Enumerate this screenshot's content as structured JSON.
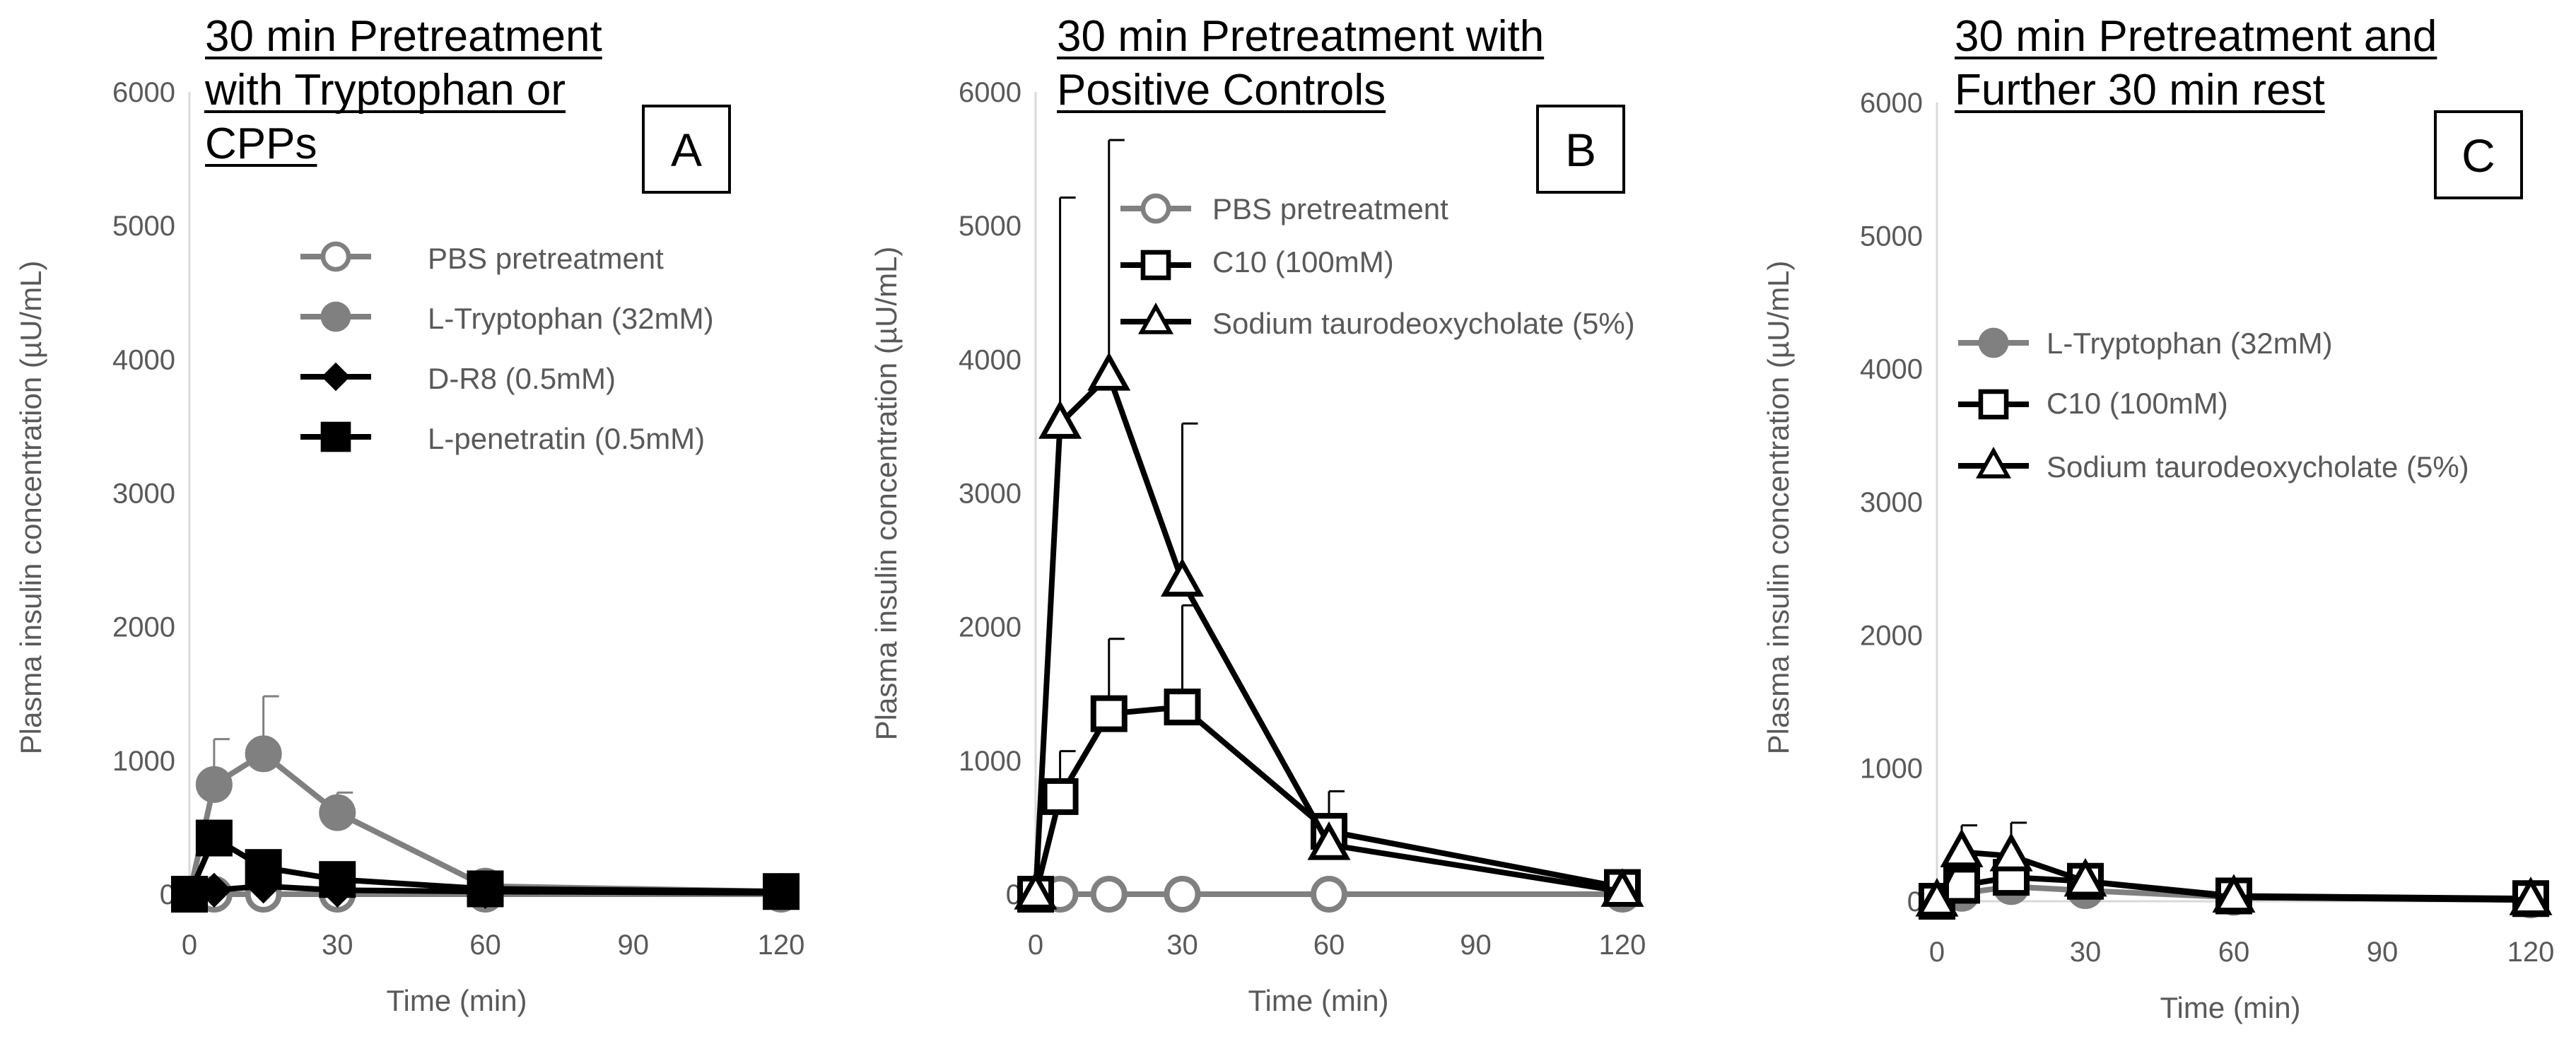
{
  "chart_data": [
    {
      "type": "line",
      "panel_label": "A",
      "title_lines": [
        "30 min Pretreatment",
        "with Tryptophan or",
        "CPPs"
      ],
      "xlabel": "Time (min)",
      "ylabel": "Plasma insulin concentration  (µU/mL)",
      "xlim": [
        0,
        120
      ],
      "ylim": [
        0,
        6000
      ],
      "xticks": [
        0,
        30,
        60,
        90,
        120
      ],
      "yticks": [
        0,
        1000,
        2000,
        3000,
        4000,
        5000,
        6000
      ],
      "series": [
        {
          "name": "PBS pretreatment",
          "color": "#808080",
          "marker": "circle-open",
          "x": [
            0,
            5,
            15,
            30,
            60,
            120
          ],
          "y": [
            0,
            0,
            0,
            0,
            0,
            0
          ],
          "err": [
            0,
            0,
            0,
            0,
            0,
            0
          ]
        },
        {
          "name": "L-Tryptophan  (32mM)",
          "color": "#808080",
          "marker": "circle-filled",
          "x": [
            0,
            5,
            15,
            30,
            60,
            120
          ],
          "y": [
            0,
            820,
            1050,
            610,
            60,
            20
          ],
          "err": [
            0,
            340,
            430,
            150,
            40,
            10
          ]
        },
        {
          "name": "D-R8  (0.5mM)",
          "color": "#000000",
          "marker": "diamond-filled",
          "x": [
            0,
            5,
            15,
            30,
            60,
            120
          ],
          "y": [
            0,
            30,
            60,
            30,
            20,
            10
          ],
          "err": [
            0,
            0,
            0,
            0,
            0,
            0
          ]
        },
        {
          "name": "L-penetratin  (0.5mM)",
          "color": "#000000",
          "marker": "square-filled",
          "x": [
            0,
            5,
            15,
            30,
            60,
            120
          ],
          "y": [
            0,
            420,
            200,
            110,
            40,
            20
          ],
          "err": [
            0,
            0,
            0,
            0,
            0,
            0
          ]
        }
      ]
    },
    {
      "type": "line",
      "panel_label": "B",
      "title_lines": [
        "30 min Pretreatment with",
        "Positive Controls"
      ],
      "xlabel": "Time (min)",
      "ylabel": "Plasma insulin  concentration  (µU/mL)",
      "xlim": [
        0,
        120
      ],
      "ylim": [
        0,
        6000
      ],
      "xticks": [
        0,
        30,
        60,
        90,
        120
      ],
      "yticks": [
        0,
        1000,
        2000,
        3000,
        4000,
        5000,
        6000
      ],
      "series": [
        {
          "name": "PBS  pretreatment",
          "color": "#808080",
          "marker": "circle-open",
          "x": [
            0,
            5,
            15,
            30,
            60,
            120
          ],
          "y": [
            0,
            0,
            0,
            0,
            0,
            0
          ],
          "err": [
            0,
            0,
            0,
            0,
            0,
            0
          ]
        },
        {
          "name": "C10  (100mM)",
          "color": "#000000",
          "marker": "square-open",
          "x": [
            0,
            5,
            15,
            30,
            60,
            120
          ],
          "y": [
            0,
            730,
            1350,
            1400,
            470,
            50
          ],
          "err": [
            0,
            340,
            560,
            760,
            300,
            0
          ]
        },
        {
          "name": "Sodium taurodeoxycholate  (5%)",
          "color": "#000000",
          "marker": "triangle-open",
          "x": [
            0,
            5,
            15,
            30,
            60,
            120
          ],
          "y": [
            0,
            3520,
            3880,
            2340,
            370,
            20
          ],
          "err": [
            0,
            1690,
            1760,
            1180,
            0,
            0
          ]
        }
      ]
    },
    {
      "type": "line",
      "panel_label": "C",
      "title_lines": [
        "30 min Pretreatment and",
        "Further 30 min rest"
      ],
      "xlabel": "Time (min)",
      "ylabel": "Plasma  insulin  concentration  (µU/mL)",
      "xlim": [
        0,
        120
      ],
      "ylim": [
        0,
        6000
      ],
      "xticks": [
        0,
        30,
        60,
        90,
        120
      ],
      "yticks": [
        0,
        1000,
        2000,
        3000,
        4000,
        5000,
        6000
      ],
      "series": [
        {
          "name": "L-Tryptophan  (32mM)",
          "color": "#808080",
          "marker": "circle-filled",
          "x": [
            0,
            5,
            15,
            30,
            60,
            120
          ],
          "y": [
            0,
            60,
            110,
            80,
            30,
            10
          ],
          "err": [
            0,
            0,
            0,
            0,
            0,
            0
          ]
        },
        {
          "name": "C10  (100mM)",
          "color": "#000000",
          "marker": "square-open",
          "x": [
            0,
            5,
            15,
            30,
            60,
            120
          ],
          "y": [
            0,
            120,
            180,
            150,
            40,
            20
          ],
          "err": [
            0,
            0,
            0,
            0,
            0,
            0
          ]
        },
        {
          "name": "Sodium taurodeoxycholate   (5%)",
          "color": "#000000",
          "marker": "triangle-open",
          "x": [
            0,
            5,
            15,
            30,
            60,
            120
          ],
          "y": [
            0,
            370,
            340,
            150,
            30,
            10
          ],
          "err": [
            0,
            200,
            250,
            0,
            0,
            0
          ]
        }
      ]
    }
  ]
}
